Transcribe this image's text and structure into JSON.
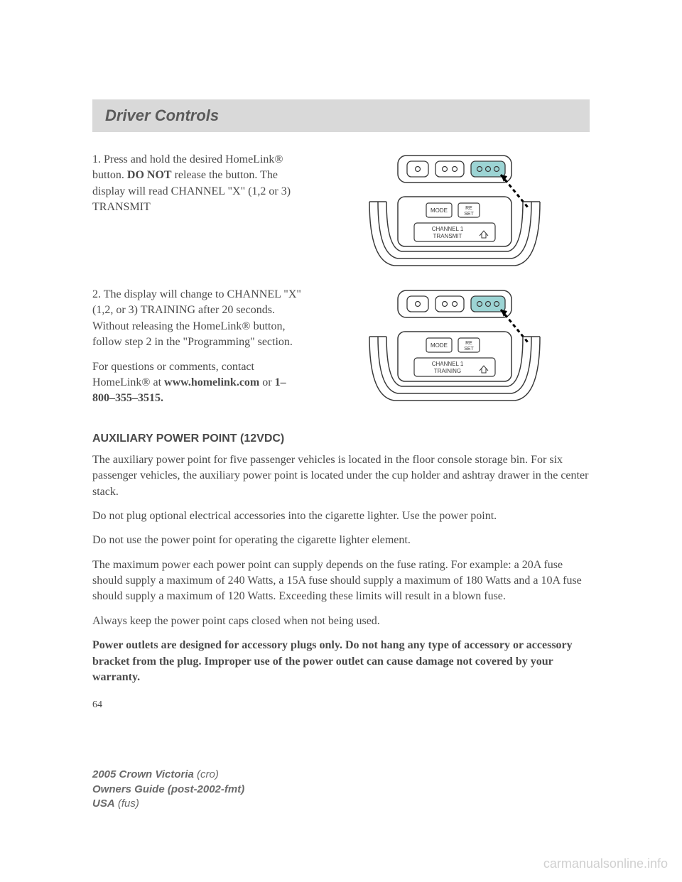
{
  "header": {
    "title": "Driver Controls"
  },
  "step1": {
    "text_html": "1. Press and hold the desired HomeLink® button. <b>DO NOT</b> release the button. The display will read CHANNEL \"X\" (1,2 or 3) TRANSMIT"
  },
  "step2": {
    "text": "2. The display will change to CHANNEL \"X\" (1,2, or 3) TRAINING after 20 seconds. Without releasing the HomeLink® button, follow step 2 in the \"Programming\" section.",
    "contact_html": "For questions or comments, contact HomeLink® at <b>www.homelink.com</b> or <b>1–800–355–3515.</b>"
  },
  "aux": {
    "heading": "AUXILIARY POWER POINT (12VDC)",
    "p1": "The auxiliary power point for five passenger vehicles is located in the floor console storage bin. For six passenger vehicles, the auxiliary power point is located under the cup holder and ashtray drawer in the center stack.",
    "p2": "Do not plug optional electrical accessories into the cigarette lighter. Use the power point.",
    "p3": "Do not use the power point for operating the cigarette lighter element.",
    "p4": "The maximum power each power point can supply depends on the fuse rating. For example: a 20A fuse should supply a maximum of 240 Watts, a 15A fuse should supply a maximum of 180 Watts and a 10A fuse should supply a maximum of 120 Watts. Exceeding these limits will result in a blown fuse.",
    "p5": "Always keep the power point caps closed when not being used.",
    "p6_bold": "Power outlets are designed for accessory plugs only. Do not hang any type of accessory or accessory bracket from the plug. Improper use of the power outlet can cause damage not covered by your warranty."
  },
  "page_number": "64",
  "footer": {
    "line1_bold": "2005 Crown Victoria",
    "line1_light": "(cro)",
    "line2_bold": "Owners Guide (post-2002-fmt)",
    "line3_bold": "USA",
    "line3_light": "(fus)"
  },
  "watermark": "carmanualsonline.info",
  "diagram": {
    "button_fill": "#9cd4d4",
    "stroke_color": "#3a3a3a",
    "stroke_width": 1.5,
    "mode_label": "MODE",
    "reset_label_top": "RE",
    "reset_label_bottom": "SET",
    "display1_line1": "CHANNEL 1",
    "display1_line2": "TRANSMIT",
    "display2_line1": "CHANNEL 1",
    "display2_line2": "TRAINING",
    "font_tiny": 7
  }
}
